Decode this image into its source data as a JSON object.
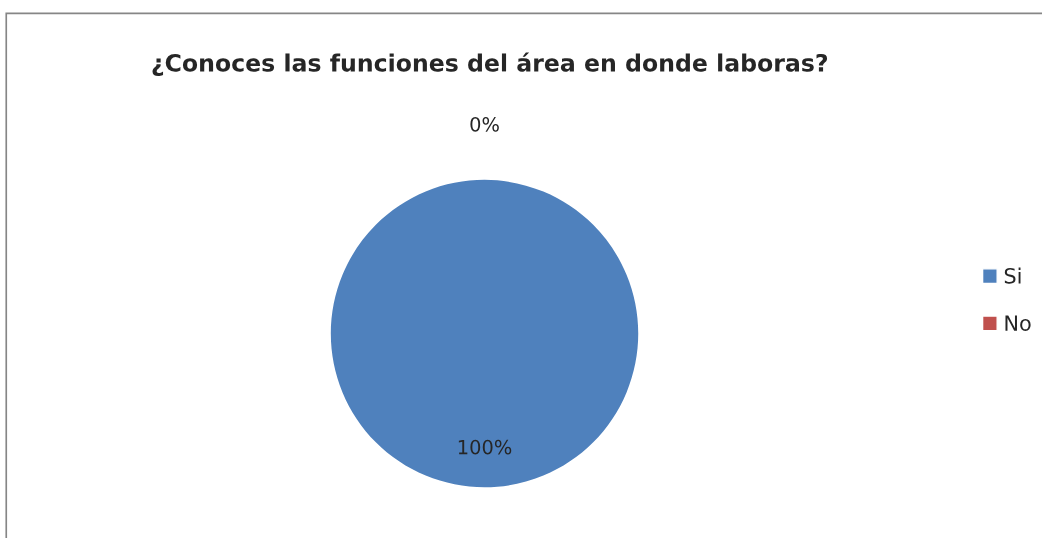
{
  "chart_data": {
    "type": "pie",
    "title": "¿Conoces las funciones del área en donde laboras?",
    "categories": [
      "Si",
      "No"
    ],
    "values": [
      100,
      0
    ],
    "colors": [
      "#4f81bd",
      "#c0504d"
    ],
    "value_labels": [
      "100%",
      "0%"
    ],
    "legend": "right"
  }
}
